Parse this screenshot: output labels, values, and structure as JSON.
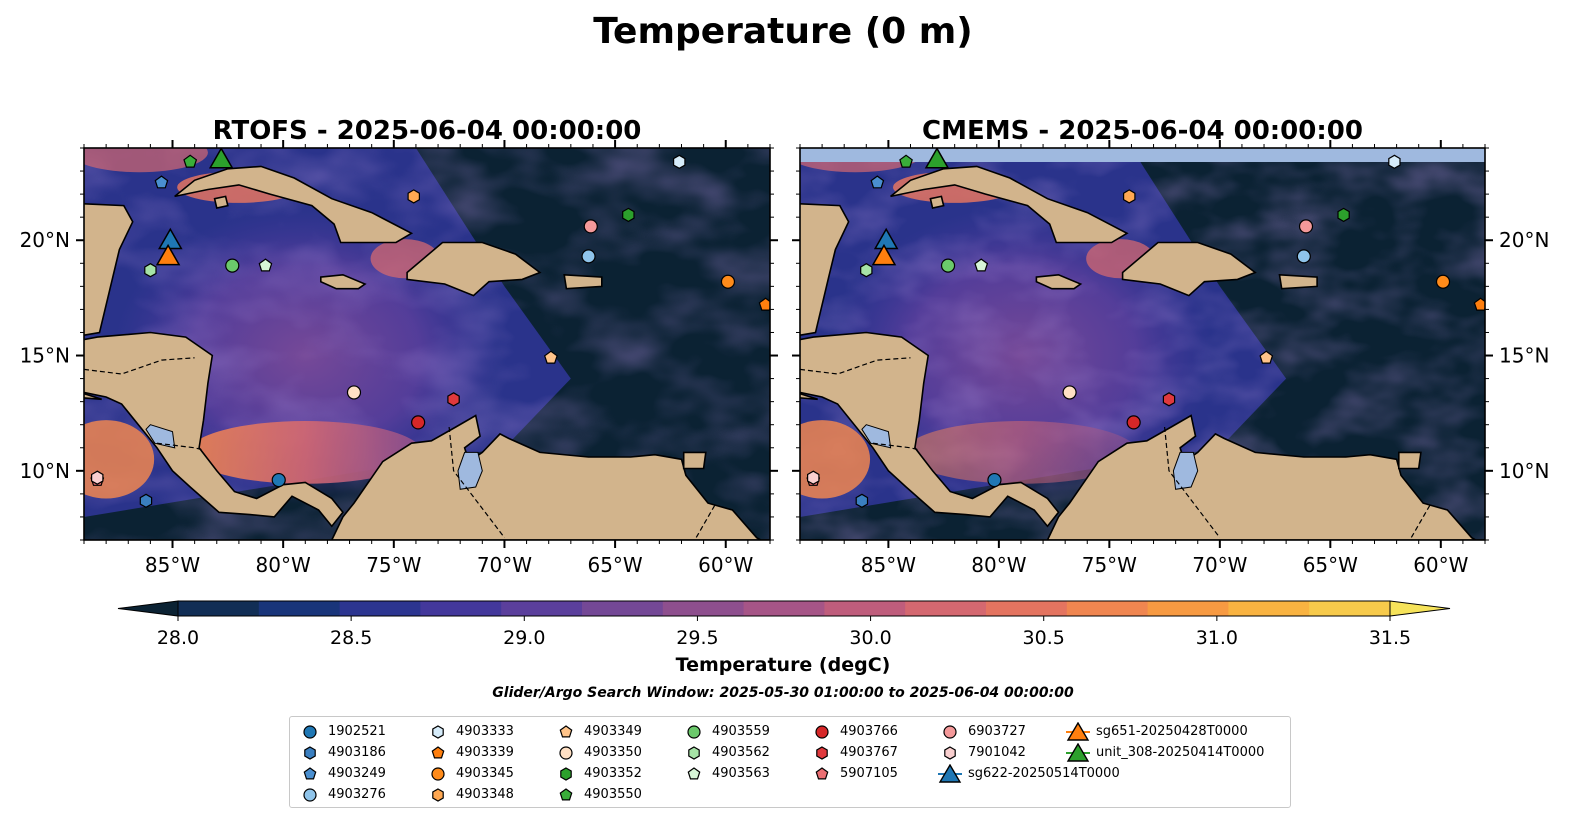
{
  "figure": {
    "suptitle": "Temperature (0 m)",
    "search_window": "Glider/Argo Search Window: 2025-05-30 01:00:00 to 2025-06-04 00:00:00"
  },
  "colors": {
    "land": "#d2b48c",
    "lakes": "#9fb9df",
    "coast": "#000000",
    "water_min": "#0b2233",
    "water_max": "#f6e35a"
  },
  "chart_data": [
    {
      "type": "heatmap",
      "title": "RTOFS - 2025-06-04 00:00:00",
      "xlabel": "",
      "ylabel": "",
      "xlim": [
        -89,
        -58
      ],
      "ylim": [
        7,
        24
      ],
      "xticks": [
        "85°W",
        "80°W",
        "75°W",
        "70°W",
        "65°W",
        "60°W"
      ],
      "yticks": [
        "20°N",
        "15°N",
        "10°N"
      ],
      "yaxis_side": "left",
      "grid": false
    },
    {
      "type": "heatmap",
      "title": "CMEMS - 2025-06-04 00:00:00",
      "xlabel": "",
      "ylabel": "",
      "xlim": [
        -89,
        -58
      ],
      "ylim": [
        7,
        24
      ],
      "xticks": [
        "85°W",
        "80°W",
        "75°W",
        "70°W",
        "65°W",
        "60°W"
      ],
      "yticks": [
        "20°N",
        "15°N",
        "10°N"
      ],
      "yaxis_side": "right",
      "grid": false
    }
  ],
  "colorbar": {
    "label": "Temperature (degC)",
    "min": 28.0,
    "max": 31.5,
    "step": 0.25,
    "ticks": [
      "28.0",
      "28.5",
      "29.0",
      "29.5",
      "30.0",
      "30.5",
      "31.0",
      "31.5"
    ],
    "extend": "both",
    "colors": [
      "#0b2233",
      "#112e55",
      "#19357a",
      "#2c3590",
      "#43389b",
      "#5b3f9c",
      "#744896",
      "#8e4f8e",
      "#a65587",
      "#bf5d7c",
      "#d46870",
      "#e47460",
      "#f08650",
      "#f79a42",
      "#f9b341",
      "#f7ca4b",
      "#f6e35a"
    ]
  },
  "floats": [
    {
      "id": "1902521",
      "lon": -80.2,
      "lat": 9.6,
      "shape": "circle",
      "color": "#1f77b4"
    },
    {
      "id": "4903186",
      "lon": -86.2,
      "lat": 8.7,
      "shape": "hexagon",
      "color": "#3a7fc0"
    },
    {
      "id": "4903249",
      "lon": -85.5,
      "lat": 22.5,
      "shape": "pentagon",
      "color": "#4a8fd0"
    },
    {
      "id": "4903276",
      "lon": -66.2,
      "lat": 19.3,
      "shape": "circle",
      "color": "#8fc4ea"
    },
    {
      "id": "4903333",
      "lon": -62.1,
      "lat": 23.4,
      "shape": "hexagon",
      "color": "#d6ecfa"
    },
    {
      "id": "4903339",
      "lon": -58.2,
      "lat": 17.2,
      "shape": "pentagon",
      "color": "#ff7f0e"
    },
    {
      "id": "4903345",
      "lon": -59.9,
      "lat": 18.2,
      "shape": "circle",
      "color": "#ff8b1a"
    },
    {
      "id": "4903348",
      "lon": -74.1,
      "lat": 21.9,
      "shape": "hexagon",
      "color": "#ffa852"
    },
    {
      "id": "4903349",
      "lon": -67.9,
      "lat": 14.9,
      "shape": "pentagon",
      "color": "#ffc48a"
    },
    {
      "id": "4903350",
      "lon": -76.8,
      "lat": 13.4,
      "shape": "circle",
      "color": "#ffe0c4"
    },
    {
      "id": "4903352",
      "lon": -64.4,
      "lat": 21.1,
      "shape": "hexagon",
      "color": "#2ca02c"
    },
    {
      "id": "4903550",
      "lon": -84.2,
      "lat": 23.4,
      "shape": "pentagon",
      "color": "#3aae3a"
    },
    {
      "id": "4903559",
      "lon": -82.3,
      "lat": 18.9,
      "shape": "circle",
      "color": "#6bc96b"
    },
    {
      "id": "4903562",
      "lon": -86.0,
      "lat": 18.7,
      "shape": "hexagon",
      "color": "#a6e3a6"
    },
    {
      "id": "4903563",
      "lon": -80.8,
      "lat": 18.9,
      "shape": "pentagon",
      "color": "#d7f5d7"
    },
    {
      "id": "4903766",
      "lon": -73.9,
      "lat": 12.1,
      "shape": "circle",
      "color": "#d62728"
    },
    {
      "id": "4903767",
      "lon": -72.3,
      "lat": 13.1,
      "shape": "hexagon",
      "color": "#e0393d"
    },
    {
      "id": "5907105",
      "lon": -88.4,
      "lat": 9.6,
      "shape": "pentagon",
      "color": "#ec6f73"
    },
    {
      "id": "6903727",
      "lon": -66.1,
      "lat": 20.6,
      "shape": "circle",
      "color": "#f4999a"
    },
    {
      "id": "7901042",
      "lon": -88.4,
      "lat": 9.7,
      "shape": "hexagon",
      "color": "#f9cfcf"
    }
  ],
  "gliders": [
    {
      "id": "sg622-20250514T0000",
      "lon": -85.1,
      "lat": 20.0,
      "color": "#1f77b4"
    },
    {
      "id": "sg651-20250428T0000",
      "lon": -85.2,
      "lat": 19.3,
      "color": "#ff7f0e"
    },
    {
      "id": "unit_308-20250414T0000",
      "lon": -82.8,
      "lat": 23.5,
      "color": "#2ca02c"
    }
  ]
}
